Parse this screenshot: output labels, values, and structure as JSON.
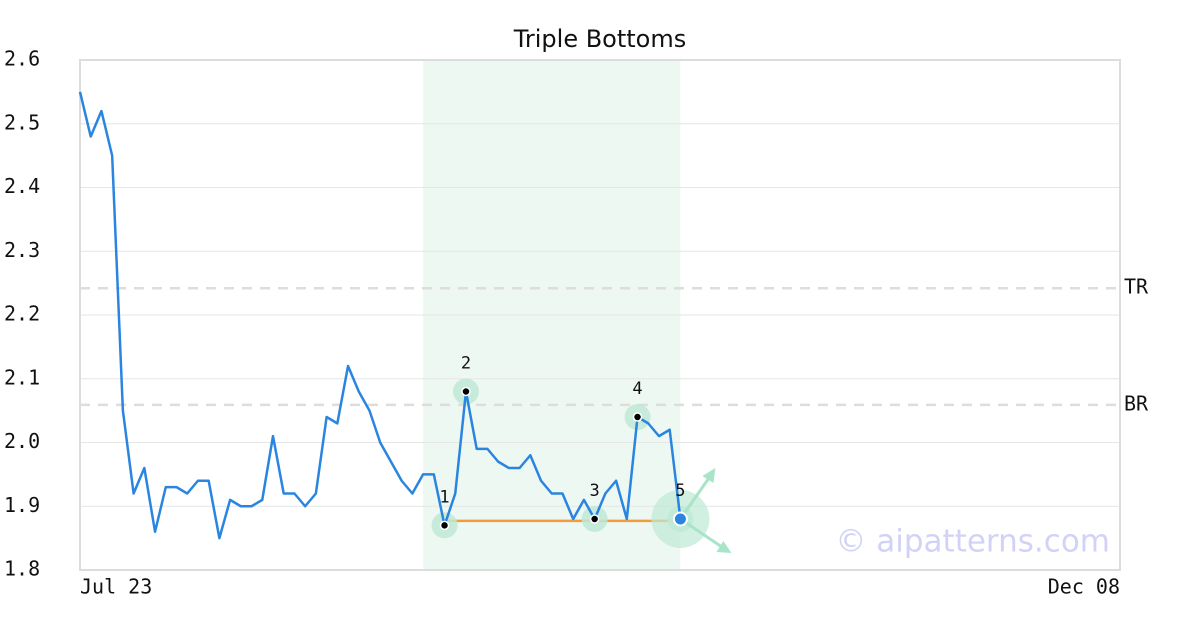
{
  "chart_data": {
    "type": "line",
    "title": "Triple Bottoms",
    "categories": [
      "Jul 23",
      null,
      null,
      null,
      null,
      null,
      null,
      null,
      null,
      null,
      null,
      null,
      null,
      null,
      null,
      null,
      null,
      null,
      null,
      null,
      null,
      null,
      null,
      null,
      null,
      null,
      null,
      null,
      null,
      null,
      null,
      null,
      null,
      null,
      null,
      null,
      null,
      null,
      null,
      null,
      null,
      null,
      null,
      null,
      null,
      null,
      null,
      null,
      null,
      null,
      null,
      null,
      null,
      null,
      null,
      null,
      null,
      null,
      null,
      null,
      null,
      null,
      null,
      null,
      null,
      null,
      null,
      null,
      null,
      null,
      null,
      null,
      null,
      null,
      null,
      null,
      null,
      null,
      null,
      null,
      null,
      null,
      null,
      null,
      null,
      null,
      null,
      null,
      null,
      null,
      null,
      null,
      null,
      null,
      null,
      null,
      null,
      "Dec 08"
    ],
    "values": [
      2.55,
      2.48,
      2.52,
      2.45,
      2.05,
      1.92,
      1.96,
      1.86,
      1.93,
      1.93,
      1.92,
      1.94,
      1.94,
      1.85,
      1.91,
      1.9,
      1.9,
      1.91,
      2.01,
      1.92,
      1.92,
      1.9,
      1.92,
      2.04,
      2.03,
      2.12,
      2.08,
      2.05,
      2.0,
      1.97,
      1.94,
      1.92,
      1.95,
      1.95,
      1.87,
      1.92,
      2.08,
      1.99,
      1.99,
      1.97,
      1.96,
      1.96,
      1.98,
      1.94,
      1.92,
      1.92,
      1.88,
      1.91,
      1.88,
      1.92,
      1.94,
      1.88,
      2.04,
      2.03,
      2.01,
      2.02,
      1.88,
      null,
      null,
      null,
      null,
      null,
      null,
      null,
      null,
      null,
      null,
      null,
      null,
      null,
      null,
      null,
      null,
      null,
      null,
      null,
      null,
      null,
      null,
      null,
      null,
      null,
      null,
      null,
      null,
      null,
      null,
      null,
      null,
      null,
      null,
      null,
      null,
      null,
      null,
      null,
      null,
      null
    ],
    "color": "#2a85e0",
    "ylim": [
      1.8,
      2.6
    ],
    "yticks": [
      1.8,
      1.9,
      {
        "value": 2,
        "label": "2.0"
      },
      2.1,
      2.2,
      2.3,
      2.4,
      2.5,
      2.6
    ],
    "grid": true,
    "reference_lines": [
      {
        "label": "TR",
        "value": 2.242
      },
      {
        "label": "BR",
        "value": 2.059
      }
    ],
    "pattern": {
      "shade": [
        32,
        56
      ],
      "support": 1.877,
      "support_range": [
        34,
        56
      ],
      "points": [
        {
          "label": "1",
          "index": 34,
          "value": 1.87
        },
        {
          "label": "2",
          "index": 36,
          "value": 2.08
        },
        {
          "label": "3",
          "index": 48,
          "value": 1.88
        },
        {
          "label": "4",
          "index": 52,
          "value": 2.04
        },
        {
          "label": "5",
          "index": 56,
          "value": 1.88
        }
      ]
    },
    "watermark": "© aipatterns.com"
  }
}
